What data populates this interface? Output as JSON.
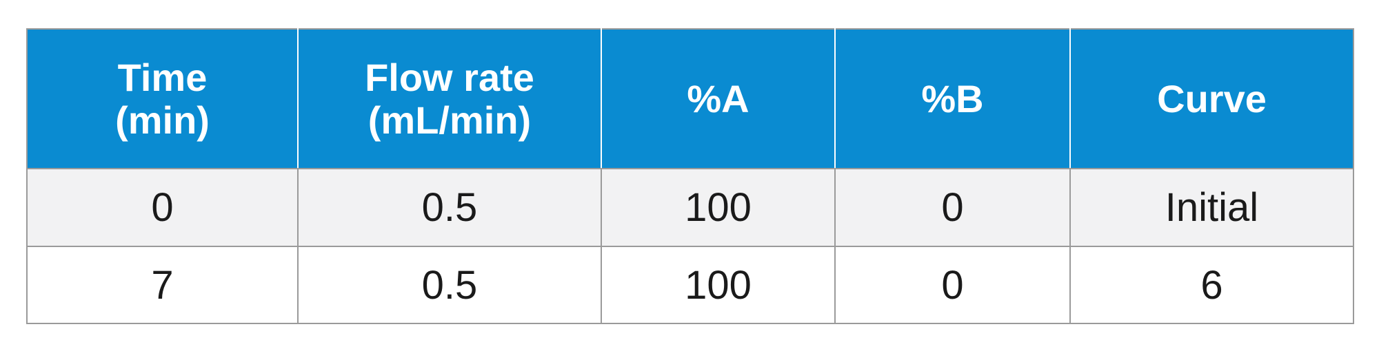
{
  "table": {
    "header": [
      [
        "Time",
        "(min)"
      ],
      [
        "Flow rate",
        "(mL/min)"
      ],
      [
        "%A"
      ],
      [
        "%B"
      ],
      [
        "Curve"
      ]
    ],
    "rows": [
      [
        "0",
        "0.5",
        "100",
        "0",
        "Initial"
      ],
      [
        "7",
        "0.5",
        "100",
        "0",
        "6"
      ]
    ]
  }
}
